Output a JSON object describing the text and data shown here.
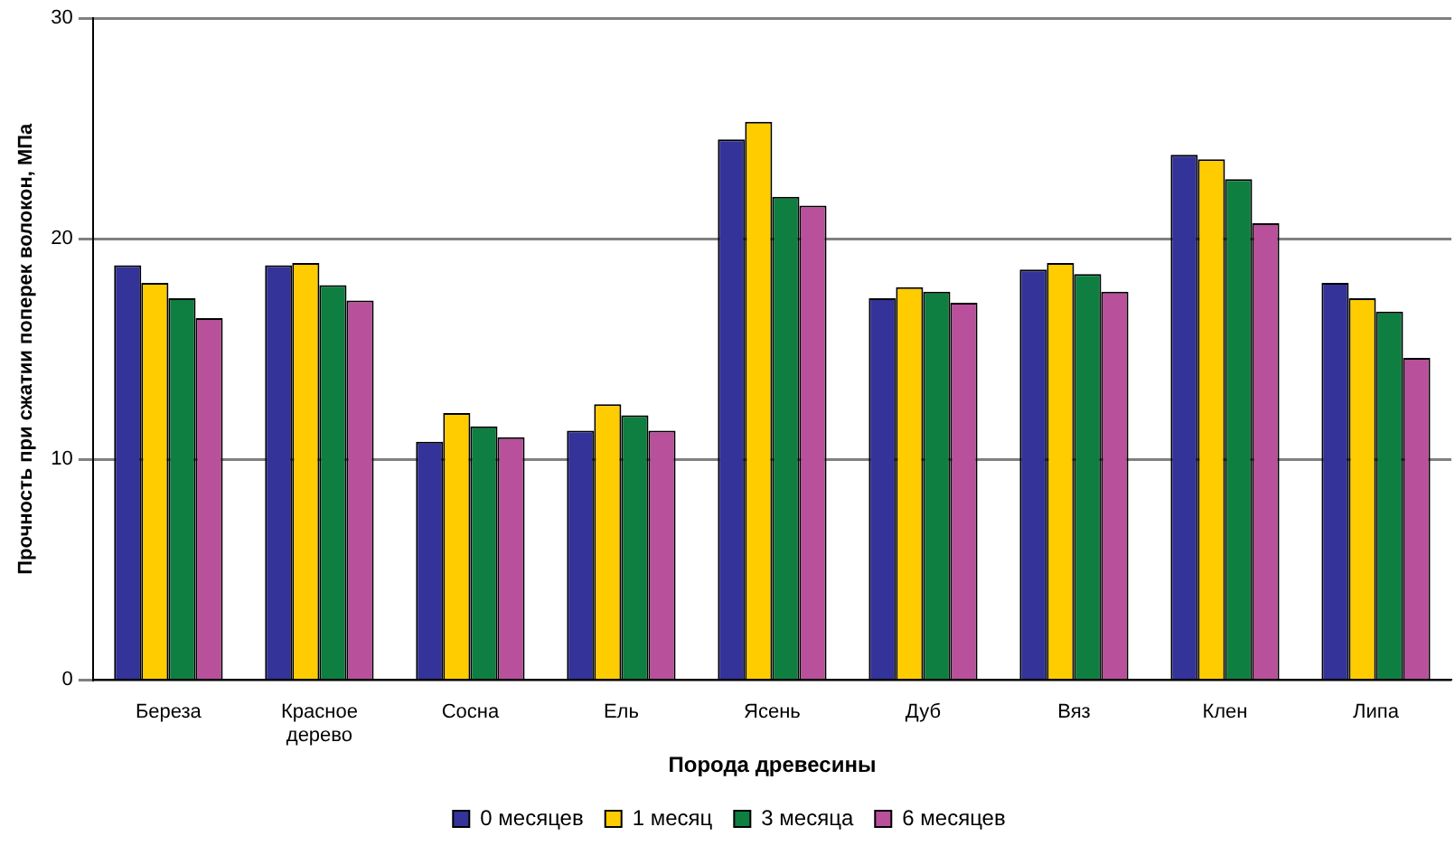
{
  "chart_data": {
    "type": "bar",
    "xlabel": "Порода древесины",
    "ylabel": "Прочность при сжатии поперек волокон, МПа",
    "categories": [
      "Береза",
      "Красное дерево",
      "Сосна",
      "Ель",
      "Ясень",
      "Дуб",
      "Вяз",
      "Клен",
      "Липа"
    ],
    "series": [
      {
        "name": "0 месяцев",
        "color": "#333399",
        "values": [
          18.8,
          18.8,
          10.8,
          11.3,
          24.5,
          17.3,
          18.6,
          23.8,
          18.0
        ]
      },
      {
        "name": "1 месяц",
        "color": "#ffcc00",
        "values": [
          18.0,
          18.9,
          12.1,
          12.5,
          25.3,
          17.8,
          18.9,
          23.6,
          17.3
        ]
      },
      {
        "name": "3 месяца",
        "color": "#0e7f40",
        "values": [
          17.3,
          17.9,
          11.5,
          12.0,
          21.9,
          17.6,
          18.4,
          22.7,
          16.7
        ]
      },
      {
        "name": "6 месяцев",
        "color": "#b8509b",
        "values": [
          16.4,
          17.2,
          11.0,
          11.3,
          21.5,
          17.1,
          17.6,
          20.7,
          14.6
        ]
      }
    ],
    "ylim": [
      0,
      30
    ],
    "yticks": [
      0,
      10,
      20,
      30
    ],
    "grid": "y",
    "legend": "bottom"
  }
}
